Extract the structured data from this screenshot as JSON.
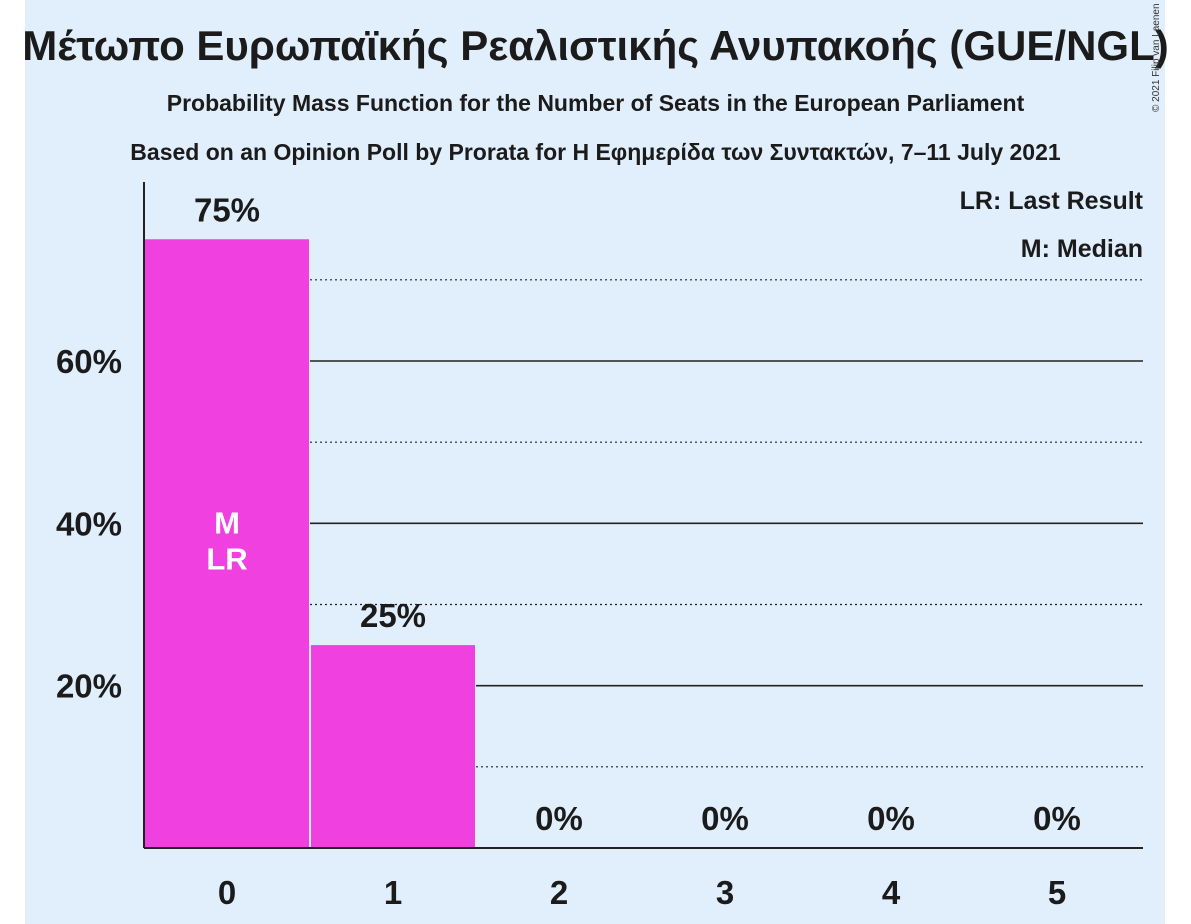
{
  "header": {
    "title": "Μέτωπο Ευρωπαϊκής Ρεαλιστικής Ανυπακοής (GUE/NGL)",
    "subtitle": "Probability Mass Function for the Number of Seats in the European Parliament",
    "source": "Based on an Opinion Poll by Prorata for Η Εφημερίδα των Συντακτών, 7–11 July 2021",
    "copyright": "© 2021 Filip van Laenen"
  },
  "legend": {
    "last_result": "LR: Last Result",
    "median": "M: Median"
  },
  "colors": {
    "bar": "#f040e0",
    "background": "#e1eefc",
    "text": "#1b1b1b"
  },
  "chart_data": {
    "type": "bar",
    "categories": [
      "0",
      "1",
      "2",
      "3",
      "4",
      "5"
    ],
    "values": [
      75,
      25,
      0,
      0,
      0,
      0
    ],
    "value_labels": [
      "75%",
      "25%",
      "0%",
      "0%",
      "0%",
      "0%"
    ],
    "ylim": [
      0,
      81
    ],
    "yticks": [
      20,
      40,
      60
    ],
    "ytick_labels": [
      "20%",
      "40%",
      "60%"
    ],
    "minor_gridlines": [
      10,
      30,
      50,
      70
    ],
    "bar_markers": {
      "0": [
        "M",
        "LR"
      ]
    },
    "grid": true,
    "legend_position": "top-right",
    "xlabel": "",
    "ylabel": ""
  }
}
